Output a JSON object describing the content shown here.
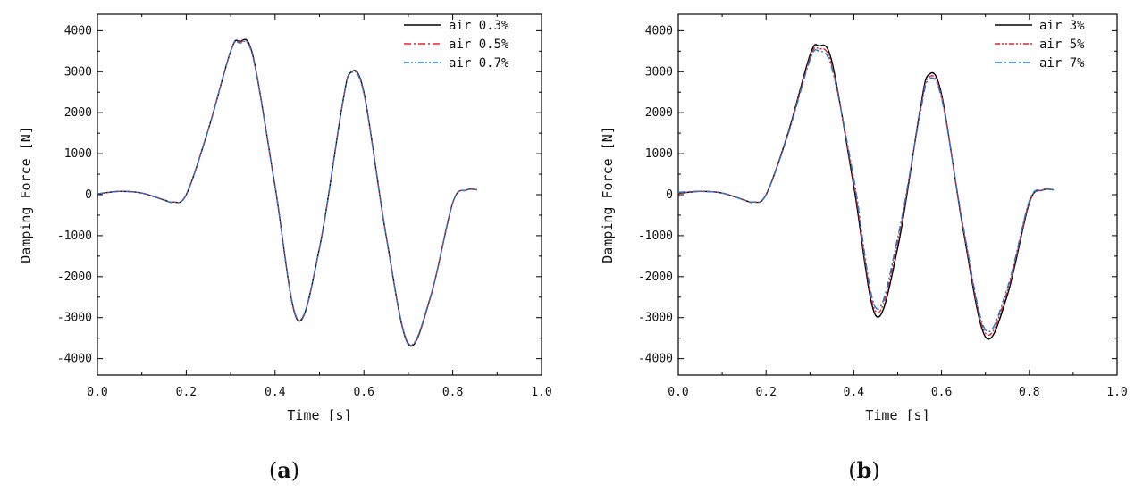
{
  "chart_data": [
    {
      "type": "line",
      "panel_label": "a",
      "xlabel": "Time [s]",
      "ylabel": "Damping Force [N]",
      "xlim": [
        0.0,
        1.0
      ],
      "ylim": [
        -4400,
        4400
      ],
      "xticks": [
        "0.0",
        "0.2",
        "0.4",
        "0.6",
        "0.8",
        "1.0"
      ],
      "yticks": [
        "-4000",
        "-3000",
        "-2000",
        "-1000",
        "0",
        "1000",
        "2000",
        "3000",
        "4000"
      ],
      "grid": false,
      "legend_position": "top-right",
      "x": [
        0.0,
        0.05,
        0.1,
        0.15,
        0.17,
        0.2,
        0.25,
        0.3,
        0.32,
        0.35,
        0.4,
        0.45,
        0.5,
        0.55,
        0.57,
        0.6,
        0.65,
        0.7,
        0.75,
        0.8,
        0.83,
        0.855
      ],
      "series": [
        {
          "name": "air 0.3%",
          "color": "#000000",
          "dash": "solid",
          "values": [
            20,
            80,
            40,
            -130,
            -180,
            0,
            1600,
            3500,
            3740,
            3400,
            200,
            -3050,
            -1300,
            2100,
            2980,
            2500,
            -1000,
            -3650,
            -2500,
            -200,
            110,
            120
          ]
        },
        {
          "name": "air 0.5%",
          "color": "#e8202a",
          "dash": "dashdot",
          "values": [
            20,
            80,
            40,
            -130,
            -180,
            0,
            1600,
            3500,
            3720,
            3380,
            200,
            -3040,
            -1300,
            2100,
            2970,
            2480,
            -1000,
            -3630,
            -2490,
            -200,
            110,
            120
          ]
        },
        {
          "name": "air 0.7%",
          "color": "#1f78d8",
          "dash": "dashdotdot",
          "values": [
            20,
            80,
            40,
            -130,
            -180,
            0,
            1600,
            3500,
            3700,
            3360,
            200,
            -3020,
            -1300,
            2100,
            2960,
            2460,
            -1000,
            -3620,
            -2480,
            -200,
            110,
            120
          ]
        }
      ]
    },
    {
      "type": "line",
      "panel_label": "b",
      "xlabel": "Time [s]",
      "ylabel": "Damping Force [N]",
      "xlim": [
        0.0,
        1.0
      ],
      "ylim": [
        -4400,
        4400
      ],
      "xticks": [
        "0.0",
        "0.2",
        "0.4",
        "0.6",
        "0.8",
        "1.0"
      ],
      "yticks": [
        "-4000",
        "-3000",
        "-2000",
        "-1000",
        "0",
        "1000",
        "2000",
        "3000",
        "4000"
      ],
      "grid": false,
      "legend_position": "top-right",
      "x": [
        0.0,
        0.05,
        0.1,
        0.15,
        0.17,
        0.2,
        0.25,
        0.3,
        0.32,
        0.35,
        0.4,
        0.45,
        0.5,
        0.55,
        0.57,
        0.6,
        0.65,
        0.7,
        0.75,
        0.8,
        0.83,
        0.855
      ],
      "series": [
        {
          "name": "air 3%",
          "color": "#000000",
          "dash": "solid",
          "values": [
            30,
            80,
            40,
            -130,
            -180,
            0,
            1500,
            3400,
            3630,
            3250,
            200,
            -2950,
            -1300,
            2000,
            2920,
            2450,
            -900,
            -3470,
            -2450,
            -200,
            110,
            120
          ]
        },
        {
          "name": "air 5%",
          "color": "#e8202a",
          "dash": "dashdotdot",
          "values": [
            40,
            80,
            40,
            -130,
            -180,
            0,
            1480,
            3330,
            3560,
            3150,
            300,
            -2850,
            -1150,
            1950,
            2850,
            2400,
            -850,
            -3380,
            -2350,
            -180,
            110,
            120
          ]
        },
        {
          "name": "air 7%",
          "color": "#1f78d8",
          "dash": "dashdot",
          "values": [
            60,
            80,
            40,
            -130,
            -180,
            0,
            1460,
            3280,
            3500,
            3080,
            400,
            -2760,
            -1050,
            1900,
            2800,
            2350,
            -800,
            -3300,
            -2270,
            -150,
            110,
            120
          ]
        }
      ]
    }
  ]
}
